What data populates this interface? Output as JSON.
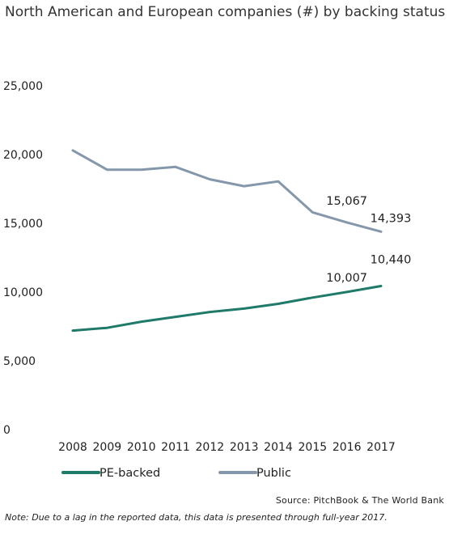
{
  "chart_data": {
    "type": "line",
    "title": "North American and European companies (#) by backing status",
    "categories": [
      "2008",
      "2009",
      "2010",
      "2011",
      "2012",
      "2013",
      "2014",
      "2015",
      "2016",
      "2017"
    ],
    "ylim": [
      0,
      25000
    ],
    "yticks": [
      0,
      5000,
      10000,
      15000,
      20000,
      25000
    ],
    "ytick_labels": [
      "0",
      "5,000",
      "10,000",
      "15,000",
      "20,000",
      "25,000"
    ],
    "grid": false,
    "legend_position": "bottom-left",
    "series": [
      {
        "name": "PE-backed",
        "color": "#1f7a6a",
        "values": [
          7200,
          7400,
          7850,
          8200,
          8550,
          8800,
          9150,
          9600,
          10007,
          10440
        ]
      },
      {
        "name": "Public",
        "color": "#8597ab",
        "values": [
          20300,
          18900,
          18900,
          19100,
          18200,
          17700,
          18050,
          15800,
          15067,
          14393
        ]
      }
    ],
    "data_labels": [
      {
        "series": 0,
        "index": 8,
        "text": "10,007"
      },
      {
        "series": 0,
        "index": 9,
        "text": "10,440"
      },
      {
        "series": 1,
        "index": 8,
        "text": "15,067"
      },
      {
        "series": 1,
        "index": 9,
        "text": "14,393"
      }
    ]
  },
  "footer": {
    "source": "Source: PitchBook & The World Bank",
    "note": "Note: Due to a lag in the reported data, this data is presented through full-year 2017."
  }
}
